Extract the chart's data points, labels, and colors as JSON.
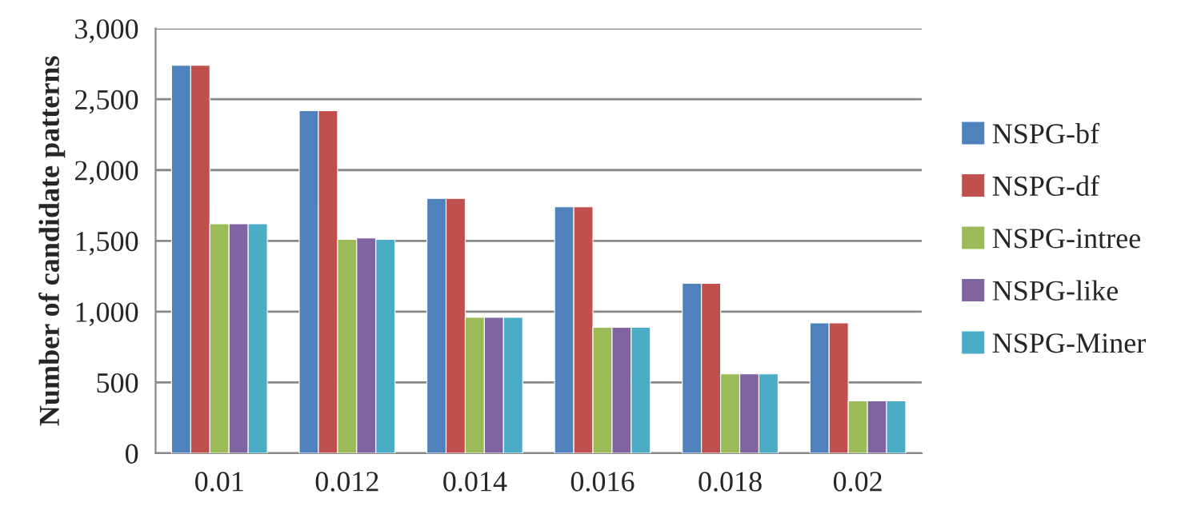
{
  "chart_data": {
    "type": "bar",
    "ylabel": "Number of candidate patterns",
    "categories": [
      "0.01",
      "0.012",
      "0.014",
      "0.016",
      "0.018",
      "0.02"
    ],
    "series": [
      {
        "name": "NSPG-bf",
        "color": "#4f81bd",
        "values": [
          2740,
          2420,
          1800,
          1740,
          1200,
          920
        ]
      },
      {
        "name": "NSPG-df",
        "color": "#c0504d",
        "values": [
          2740,
          2420,
          1800,
          1740,
          1200,
          920
        ]
      },
      {
        "name": "NSPG-intree",
        "color": "#9bbb59",
        "values": [
          1620,
          1510,
          960,
          890,
          560,
          370
        ]
      },
      {
        "name": "NSPG-like",
        "color": "#8064a2",
        "values": [
          1620,
          1520,
          960,
          890,
          560,
          370
        ]
      },
      {
        "name": "NSPG-Miner",
        "color": "#4bacc6",
        "values": [
          1620,
          1510,
          960,
          890,
          560,
          370
        ]
      }
    ],
    "ylim": [
      0,
      3000
    ],
    "yticks": [
      {
        "value": 0,
        "label": "0"
      },
      {
        "value": 500,
        "label": "500"
      },
      {
        "value": 1000,
        "label": "1,000"
      },
      {
        "value": 1500,
        "label": "1,500"
      },
      {
        "value": 2000,
        "label": "2,000"
      },
      {
        "value": 2500,
        "label": "2,500"
      },
      {
        "value": 3000,
        "label": "3,000"
      }
    ],
    "grid": "y",
    "legend": "right"
  }
}
